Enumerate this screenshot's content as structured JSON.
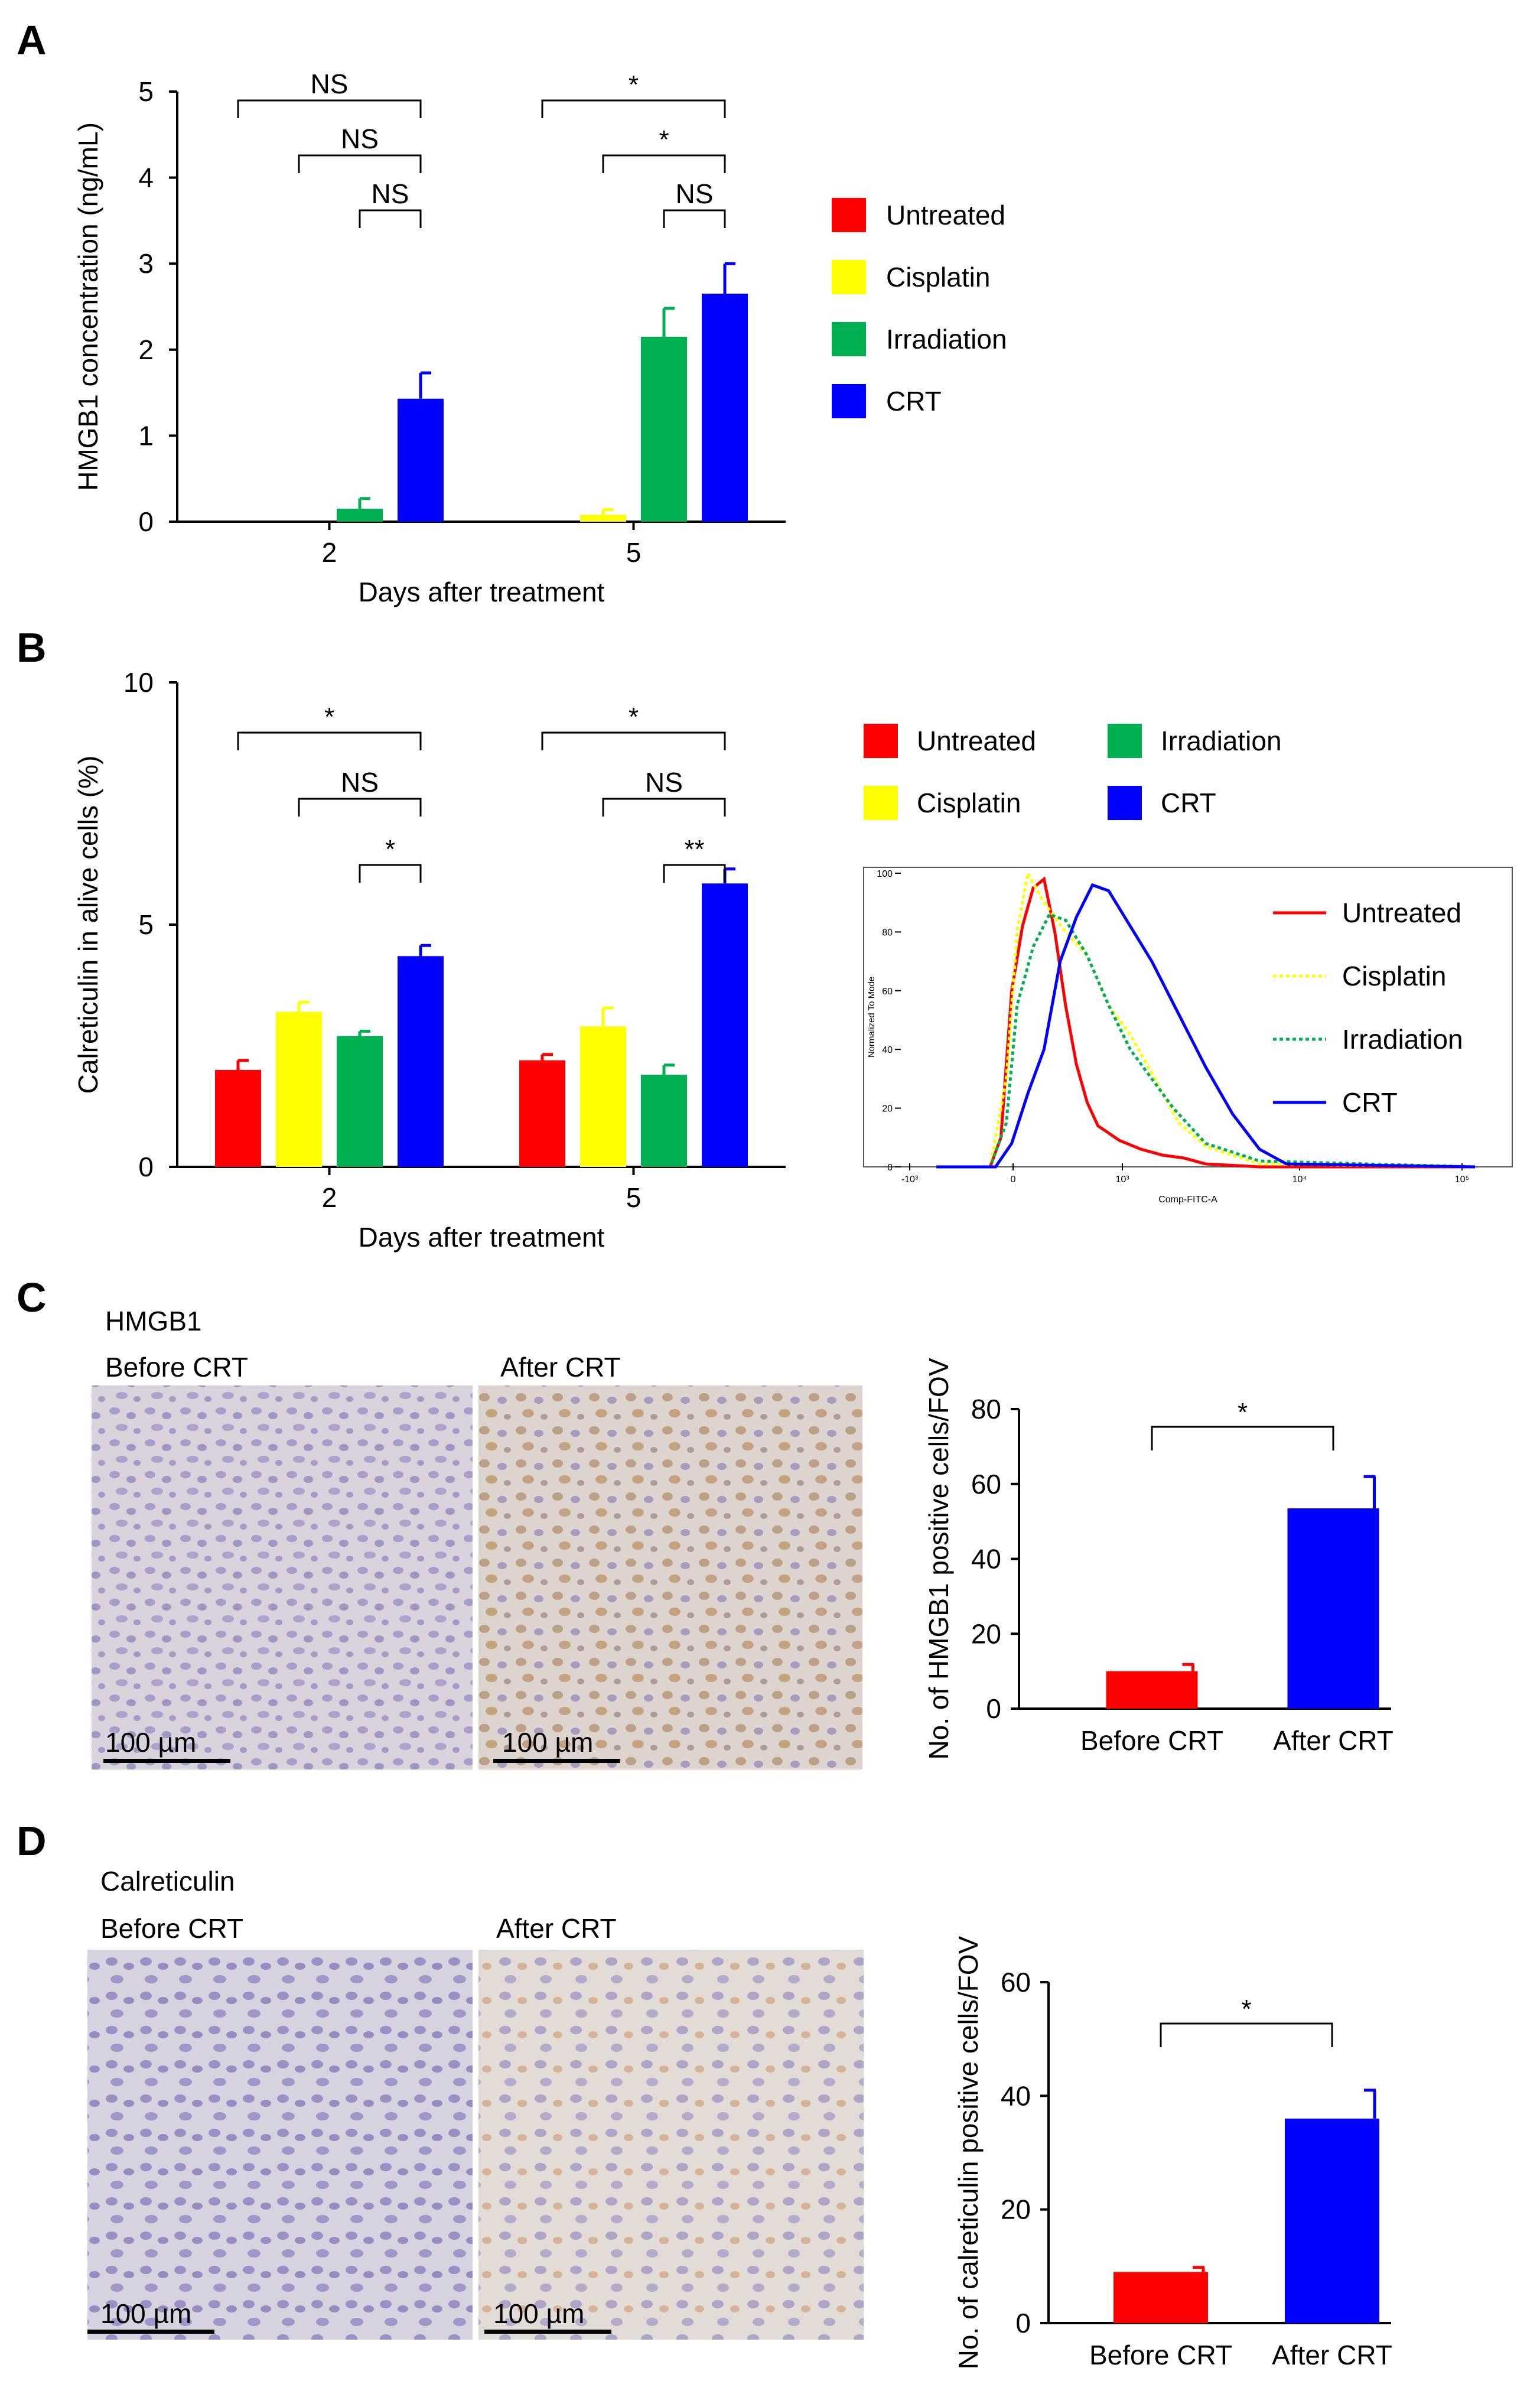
{
  "panels": {
    "A": {
      "label": "A"
    },
    "B": {
      "label": "B"
    },
    "C": {
      "label": "C",
      "stain": "HMGB1",
      "before_label": "Before CRT",
      "after_label": "After CRT",
      "scale_text": "100 µm"
    },
    "D": {
      "label": "D",
      "stain": "Calreticulin",
      "before_label": "Before CRT",
      "after_label": "After CRT",
      "scale_text": "100 µm"
    }
  },
  "colors": {
    "untreated": "#ff0000",
    "cisplatin": "#ffff00",
    "irradiation": "#00b050",
    "crt": "#0000ff"
  },
  "chart_data": [
    {
      "id": "A",
      "type": "bar",
      "title": "",
      "xlabel": "Days after treatment",
      "ylabel": "HMGB1 concentration (ng/mL)",
      "ylim": [
        0,
        5
      ],
      "yticks": [
        0,
        1,
        2,
        3,
        4,
        5
      ],
      "categories": [
        "2",
        "5"
      ],
      "series": [
        {
          "name": "Untreated",
          "color": "#ff0000",
          "values": [
            0,
            0
          ],
          "errors": [
            0,
            0
          ]
        },
        {
          "name": "Cisplatin",
          "color": "#ffff00",
          "values": [
            0,
            0.08
          ],
          "errors": [
            0,
            0.06
          ]
        },
        {
          "name": "Irradiation",
          "color": "#00b050",
          "values": [
            0.15,
            2.15
          ],
          "errors": [
            0.12,
            0.33
          ]
        },
        {
          "name": "CRT",
          "color": "#0000ff",
          "values": [
            1.43,
            2.65
          ],
          "errors": [
            0.3,
            0.35
          ]
        }
      ],
      "legend": [
        "Untreated",
        "Cisplatin",
        "Irradiation",
        "CRT"
      ],
      "legend_position": "right",
      "significance": [
        {
          "category": 0,
          "from_series": 0,
          "to_series": 3,
          "text": "NS"
        },
        {
          "category": 0,
          "from_series": 1,
          "to_series": 3,
          "text": "NS"
        },
        {
          "category": 0,
          "from_series": 2,
          "to_series": 3,
          "text": "NS"
        },
        {
          "category": 1,
          "from_series": 0,
          "to_series": 3,
          "text": "*"
        },
        {
          "category": 1,
          "from_series": 1,
          "to_series": 3,
          "text": "*"
        },
        {
          "category": 1,
          "from_series": 2,
          "to_series": 3,
          "text": "NS"
        }
      ]
    },
    {
      "id": "B",
      "type": "bar",
      "title": "",
      "xlabel": "Days after treatment",
      "ylabel": "Calreticulin in alive cells (%)",
      "ylim": [
        0,
        10
      ],
      "yticks": [
        0,
        5,
        10
      ],
      "categories": [
        "2",
        "5"
      ],
      "series": [
        {
          "name": "Untreated",
          "color": "#ff0000",
          "values": [
            2.0,
            2.2
          ],
          "errors": [
            0.2,
            0.12
          ]
        },
        {
          "name": "Cisplatin",
          "color": "#ffff00",
          "values": [
            3.2,
            2.9
          ],
          "errors": [
            0.2,
            0.38
          ]
        },
        {
          "name": "Irradiation",
          "color": "#00b050",
          "values": [
            2.7,
            1.9
          ],
          "errors": [
            0.1,
            0.2
          ]
        },
        {
          "name": "CRT",
          "color": "#0000ff",
          "values": [
            4.35,
            5.85
          ],
          "errors": [
            0.22,
            0.3
          ]
        }
      ],
      "legend": [
        "Untreated",
        "Irradiation",
        "Cisplatin",
        "CRT"
      ],
      "legend_position": "top-right",
      "significance": [
        {
          "category": 0,
          "from_series": 0,
          "to_series": 3,
          "text": "*"
        },
        {
          "category": 0,
          "from_series": 1,
          "to_series": 3,
          "text": "NS"
        },
        {
          "category": 0,
          "from_series": 2,
          "to_series": 3,
          "text": "*"
        },
        {
          "category": 1,
          "from_series": 0,
          "to_series": 3,
          "text": "*"
        },
        {
          "category": 1,
          "from_series": 1,
          "to_series": 3,
          "text": "NS"
        },
        {
          "category": 1,
          "from_series": 2,
          "to_series": 3,
          "text": "**"
        }
      ]
    },
    {
      "id": "B-flow",
      "type": "line",
      "title": "",
      "xlabel": "Comp-FITC-A",
      "ylabel": "Normalized To Mode",
      "ylim": [
        0,
        100
      ],
      "yticks": [
        0,
        20,
        40,
        60,
        80,
        100
      ],
      "xticks": [
        "-10³",
        "0",
        "10³",
        "10⁴",
        "10⁵"
      ],
      "series": [
        {
          "name": "Untreated",
          "color": "#ff0000",
          "style": "solid",
          "x": [
            0.0,
            0.05,
            0.1,
            0.12,
            0.14,
            0.16,
            0.18,
            0.2,
            0.22,
            0.24,
            0.26,
            0.28,
            0.3,
            0.34,
            0.38,
            0.42,
            0.46,
            0.5,
            0.6,
            1.0
          ],
          "y": [
            0,
            0,
            0,
            10,
            60,
            82,
            95,
            98,
            80,
            55,
            35,
            22,
            14,
            9,
            6,
            4,
            3,
            1,
            0,
            0
          ]
        },
        {
          "name": "Cisplatin",
          "color": "#ffff00",
          "style": "dotted",
          "x": [
            0.0,
            0.06,
            0.1,
            0.13,
            0.15,
            0.17,
            0.2,
            0.24,
            0.28,
            0.32,
            0.36,
            0.4,
            0.45,
            0.5,
            0.6,
            1.0
          ],
          "y": [
            0,
            0,
            0,
            30,
            80,
            100,
            90,
            80,
            72,
            55,
            45,
            32,
            15,
            7,
            1,
            0
          ]
        },
        {
          "name": "Irradiation",
          "color": "#00b050",
          "style": "dotted",
          "x": [
            0.0,
            0.06,
            0.1,
            0.13,
            0.15,
            0.18,
            0.21,
            0.24,
            0.28,
            0.32,
            0.36,
            0.4,
            0.44,
            0.5,
            0.6,
            1.0
          ],
          "y": [
            0,
            0,
            0,
            15,
            55,
            75,
            86,
            84,
            72,
            55,
            40,
            30,
            20,
            8,
            2,
            0
          ]
        },
        {
          "name": "CRT",
          "color": "#0000ff",
          "style": "solid",
          "x": [
            0.0,
            0.08,
            0.11,
            0.14,
            0.17,
            0.2,
            0.23,
            0.26,
            0.29,
            0.32,
            0.36,
            0.4,
            0.45,
            0.5,
            0.55,
            0.6,
            0.65,
            1.0
          ],
          "y": [
            0,
            0,
            0,
            8,
            25,
            40,
            70,
            85,
            96,
            94,
            82,
            70,
            52,
            34,
            18,
            6,
            1,
            0
          ]
        }
      ],
      "legend": [
        "Untreated",
        "Cisplatin",
        "Irradiation",
        "CRT"
      ],
      "legend_position": "top-right"
    },
    {
      "id": "C",
      "type": "bar",
      "title": "",
      "xlabel": "",
      "ylabel": "No. of HMGB1 positive cells/FOV",
      "ylim": [
        0,
        80
      ],
      "yticks": [
        0,
        20,
        40,
        60,
        80
      ],
      "categories": [
        "Before CRT",
        "After CRT"
      ],
      "series": [
        {
          "name": "HMGB1 positive cells",
          "colors": [
            "#ff0000",
            "#0000ff"
          ],
          "values": [
            10,
            53.5
          ],
          "errors": [
            1.8,
            8.5
          ]
        }
      ],
      "significance": [
        {
          "from": 0,
          "to": 1,
          "text": "*"
        }
      ]
    },
    {
      "id": "D",
      "type": "bar",
      "title": "",
      "xlabel": "",
      "ylabel": "No. of calreticulin positive cells/FOV",
      "ylim": [
        0,
        60
      ],
      "yticks": [
        0,
        20,
        40,
        60
      ],
      "categories": [
        "Before CRT",
        "After CRT"
      ],
      "series": [
        {
          "name": "Calreticulin positive cells",
          "colors": [
            "#ff0000",
            "#0000ff"
          ],
          "values": [
            9,
            36
          ],
          "errors": [
            0.8,
            5
          ]
        }
      ],
      "significance": [
        {
          "from": 0,
          "to": 1,
          "text": "*"
        }
      ]
    }
  ]
}
